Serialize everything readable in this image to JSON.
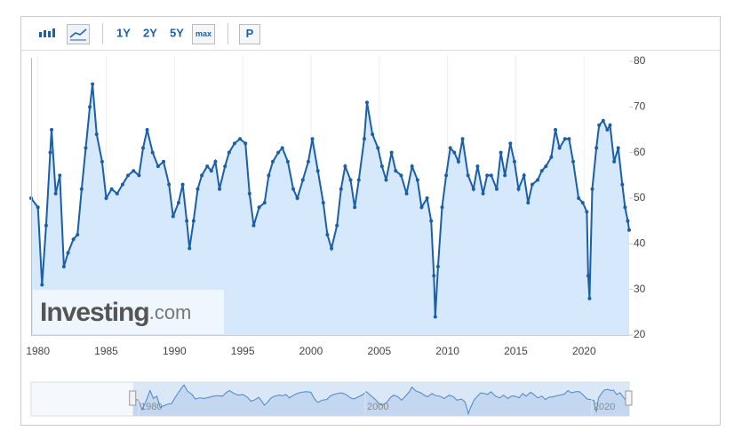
{
  "toolbar": {
    "buttons": [
      "1Y",
      "2Y",
      "5Y",
      "max",
      "P"
    ]
  },
  "watermark": [
    "Investing",
    ".com"
  ],
  "chart_data": {
    "type": "line",
    "x": [
      1979.5,
      1980.0,
      1980.3,
      1980.6,
      1980.9,
      1981.0,
      1981.3,
      1981.6,
      1981.9,
      1982.2,
      1982.6,
      1982.9,
      1983.2,
      1983.5,
      1983.8,
      1984.0,
      1984.3,
      1984.7,
      1985.0,
      1985.4,
      1985.8,
      1986.2,
      1986.6,
      1987.0,
      1987.4,
      1987.7,
      1988.0,
      1988.4,
      1988.8,
      1989.2,
      1989.6,
      1989.9,
      1990.3,
      1990.6,
      1990.9,
      1991.1,
      1991.4,
      1991.7,
      1992.0,
      1992.4,
      1992.7,
      1993.0,
      1993.3,
      1993.7,
      1994.0,
      1994.4,
      1994.8,
      1995.2,
      1995.5,
      1995.8,
      1996.2,
      1996.6,
      1996.9,
      1997.2,
      1997.6,
      1997.9,
      1998.3,
      1998.7,
      1999.0,
      1999.4,
      1999.8,
      2000.1,
      2000.5,
      2000.9,
      2001.2,
      2001.5,
      2001.9,
      2002.2,
      2002.5,
      2002.9,
      2003.2,
      2003.5,
      2003.9,
      2004.1,
      2004.5,
      2004.9,
      2005.2,
      2005.5,
      2005.9,
      2006.2,
      2006.6,
      2007.0,
      2007.4,
      2007.8,
      2008.1,
      2008.5,
      2008.8,
      2009.0,
      2009.1,
      2009.3,
      2009.6,
      2009.9,
      2010.2,
      2010.5,
      2010.8,
      2011.1,
      2011.5,
      2011.9,
      2012.2,
      2012.6,
      2012.9,
      2013.2,
      2013.6,
      2013.9,
      2014.2,
      2014.6,
      2014.9,
      2015.2,
      2015.6,
      2015.9,
      2016.2,
      2016.6,
      2016.9,
      2017.2,
      2017.6,
      2017.9,
      2018.2,
      2018.6,
      2018.9,
      2019.2,
      2019.6,
      2019.9,
      2020.2,
      2020.3,
      2020.4,
      2020.6,
      2020.9,
      2021.1,
      2021.4,
      2021.7,
      2021.9,
      2022.2,
      2022.5,
      2022.8,
      2023.0,
      2023.2,
      2023.3
    ],
    "values": [
      50,
      48,
      31,
      44,
      60,
      65,
      51,
      55,
      35,
      38,
      41,
      42,
      52,
      61,
      70,
      75,
      64,
      58,
      50,
      52,
      51,
      53,
      55,
      56,
      55,
      61,
      65,
      60,
      57,
      58,
      53,
      46,
      49,
      53,
      45,
      39,
      45,
      52,
      55,
      57,
      56,
      58,
      52,
      57,
      60,
      62,
      63,
      62,
      51,
      44,
      48,
      49,
      55,
      58,
      60,
      61,
      58,
      52,
      50,
      54,
      58,
      63,
      56,
      49,
      42,
      39,
      44,
      52,
      57,
      54,
      48,
      54,
      63,
      71,
      64,
      61,
      57,
      54,
      60,
      56,
      55,
      51,
      57,
      54,
      48,
      50,
      45,
      33,
      24,
      35,
      48,
      55,
      61,
      60,
      58,
      63,
      55,
      52,
      57,
      51,
      55,
      55,
      52,
      60,
      55,
      62,
      58,
      52,
      55,
      49,
      53,
      54,
      56,
      57,
      59,
      65,
      61,
      63,
      63,
      58,
      50,
      49,
      47,
      33,
      28,
      52,
      61,
      66,
      67,
      65,
      66,
      58,
      61,
      53,
      48,
      45,
      43
    ],
    "color": "#1a5fa8",
    "fill": "#d6e8fb",
    "xlim": [
      1979.5,
      2023.3
    ],
    "xticks": [
      1980,
      1985,
      1990,
      1995,
      2000,
      2005,
      2010,
      2015,
      2020
    ],
    "ylim": [
      20,
      80
    ],
    "yticks": [
      20,
      30,
      40,
      50,
      60,
      70,
      80
    ],
    "grid": true
  },
  "navigator": {
    "xlim": [
      1970.5,
      2023.3
    ],
    "xticks": [
      1980,
      2000,
      2020
    ]
  }
}
